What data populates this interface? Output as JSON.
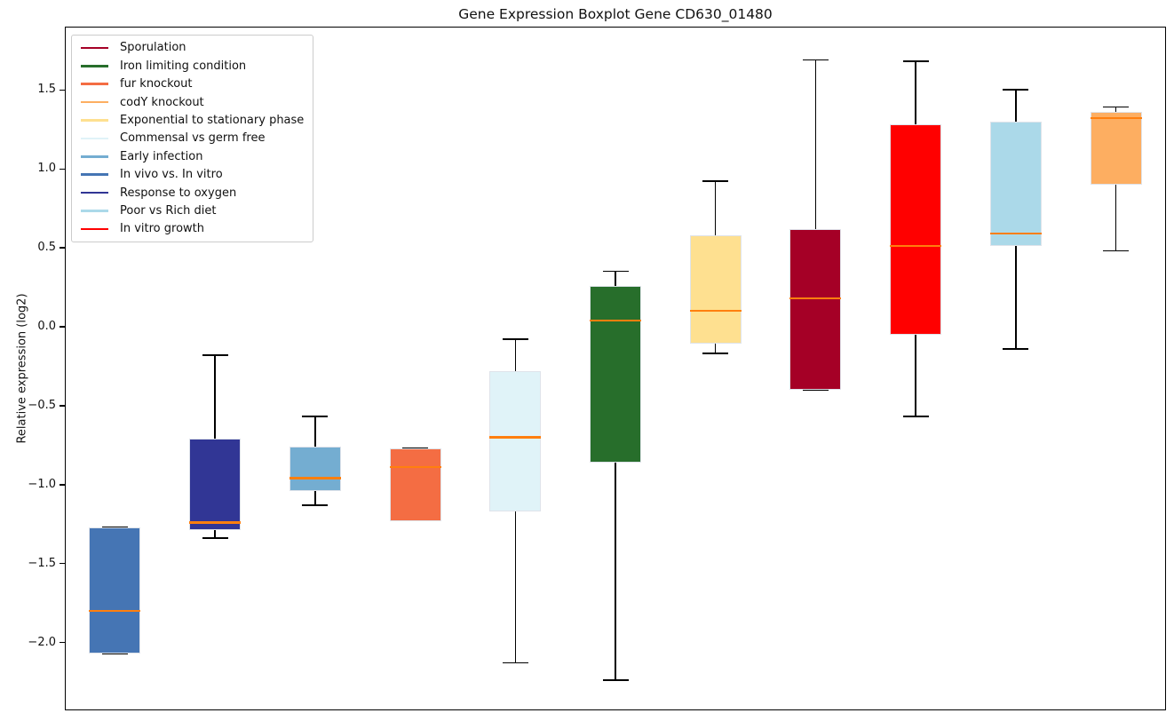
{
  "chart_data": {
    "type": "boxplot",
    "title": "Gene Expression Boxplot Gene CD630_01480",
    "ylabel": "Relative expression (log2)",
    "xlabel": "",
    "ylim": [
      -2.43,
      1.9
    ],
    "yticks": [
      -2.0,
      -1.5,
      -1.0,
      -0.5,
      0.0,
      0.5,
      1.0,
      1.5
    ],
    "x_tick_labels": [],
    "grid": false,
    "legend_position": "upper left",
    "median_color": "#ff7f0e",
    "whisker_color": "#000000",
    "boxes": [
      {
        "condition": "In vivo vs. In vitro",
        "color": "#4575B4",
        "whisker_low": -2.07,
        "q1": -2.07,
        "median": -1.8,
        "q3": -1.27,
        "whisker_high": -1.27
      },
      {
        "condition": "Response to oxygen",
        "color": "#313695",
        "whisker_low": -1.34,
        "q1": -1.29,
        "median": -1.24,
        "q3": -0.71,
        "whisker_high": -0.18
      },
      {
        "condition": "Early infection",
        "color": "#74ADD1",
        "whisker_low": -1.13,
        "q1": -1.04,
        "median": -0.96,
        "q3": -0.76,
        "whisker_high": -0.57
      },
      {
        "condition": "fur knockout",
        "color": "#F46D43",
        "whisker_low": -1.23,
        "q1": -1.23,
        "median": -0.89,
        "q3": -0.77,
        "whisker_high": -0.77
      },
      {
        "condition": "Commensal vs germ free",
        "color": "#E0F3F8",
        "whisker_low": -2.13,
        "q1": -1.17,
        "median": -0.7,
        "q3": -0.28,
        "whisker_high": -0.08
      },
      {
        "condition": "Iron limiting condition",
        "color": "#276E2B",
        "whisker_low": -2.24,
        "q1": -0.86,
        "median": 0.04,
        "q3": 0.26,
        "whisker_high": 0.35
      },
      {
        "condition": "Exponential to stationary phase",
        "color": "#FEE090",
        "whisker_low": -0.17,
        "q1": -0.11,
        "median": 0.1,
        "q3": 0.58,
        "whisker_high": 0.92
      },
      {
        "condition": "Sporulation",
        "color": "#A50026",
        "whisker_low": -0.4,
        "q1": -0.4,
        "median": 0.18,
        "q3": 0.62,
        "whisker_high": 1.69
      },
      {
        "condition": "In vitro growth",
        "color": "#FF0000",
        "whisker_low": -0.57,
        "q1": -0.05,
        "median": 0.51,
        "q3": 1.28,
        "whisker_high": 1.68
      },
      {
        "condition": "Poor vs Rich diet",
        "color": "#ABD9E9",
        "whisker_low": -0.14,
        "q1": 0.51,
        "median": 0.59,
        "q3": 1.3,
        "whisker_high": 1.5
      },
      {
        "condition": "codY knockout",
        "color": "#FDAE61",
        "whisker_low": 0.48,
        "q1": 0.9,
        "median": 1.32,
        "q3": 1.36,
        "whisker_high": 1.39
      }
    ],
    "legend": [
      {
        "label": "Sporulation",
        "color": "#A50026"
      },
      {
        "label": "Iron limiting condition",
        "color": "#276E2B"
      },
      {
        "label": "fur knockout",
        "color": "#F46D43"
      },
      {
        "label": "codY knockout",
        "color": "#FDAE61"
      },
      {
        "label": "Exponential to stationary phase",
        "color": "#FEE090"
      },
      {
        "label": "Commensal vs germ free",
        "color": "#E0F3F8"
      },
      {
        "label": "Early infection",
        "color": "#74ADD1"
      },
      {
        "label": "In vivo vs. In vitro",
        "color": "#4575B4"
      },
      {
        "label": "Response to oxygen",
        "color": "#313695"
      },
      {
        "label": "Poor vs Rich diet",
        "color": "#ABD9E9"
      },
      {
        "label": "In vitro growth",
        "color": "#FF0000"
      }
    ]
  }
}
